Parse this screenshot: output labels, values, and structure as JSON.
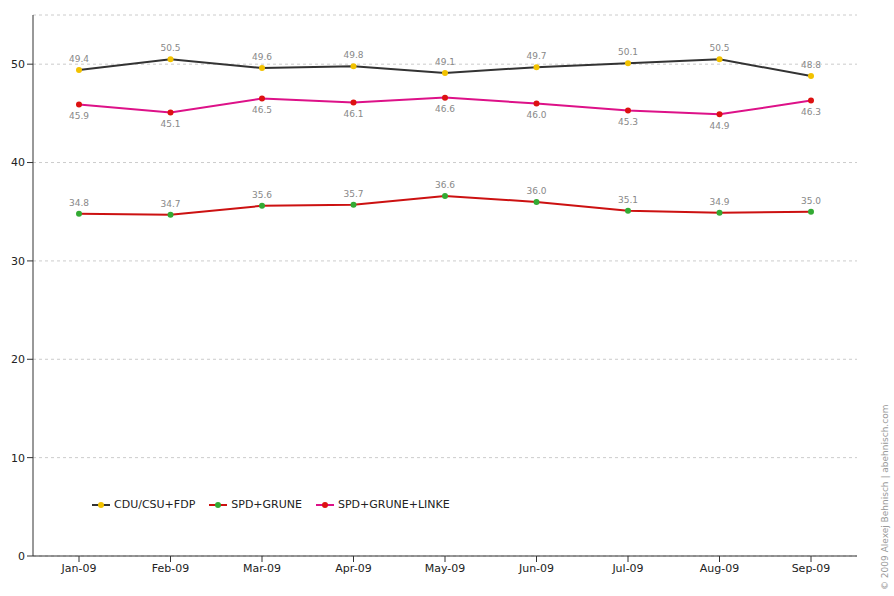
{
  "chart_data": {
    "type": "line",
    "categories": [
      "Jan-09",
      "Feb-09",
      "Mar-09",
      "Apr-09",
      "May-09",
      "Jun-09",
      "Jul-09",
      "Aug-09",
      "Sep-09"
    ],
    "series": [
      {
        "name": "CDU/CSU+FDP",
        "color": "#333333",
        "values": [
          49.4,
          50.5,
          49.6,
          49.8,
          49.1,
          49.7,
          50.1,
          50.5,
          48.8
        ]
      },
      {
        "name": "SPD+GRUNE",
        "color": "#cc1111",
        "values": [
          34.8,
          34.7,
          35.6,
          35.7,
          36.6,
          36.0,
          35.1,
          34.9,
          35.0
        ]
      },
      {
        "name": "SPD+GRUNE+LINKE",
        "color": "#dd1188",
        "values": [
          45.9,
          45.1,
          46.5,
          46.1,
          46.6,
          46.0,
          45.3,
          44.9,
          46.3
        ]
      }
    ],
    "ylim": [
      0,
      55
    ],
    "yticks": [
      0,
      10,
      20,
      30,
      40,
      50
    ],
    "grid": true,
    "data_labels": true,
    "legend": "lower left",
    "marker": "circle",
    "annotations": [
      "© 2009 Alexej Behnisch | abehnisch.com"
    ]
  }
}
